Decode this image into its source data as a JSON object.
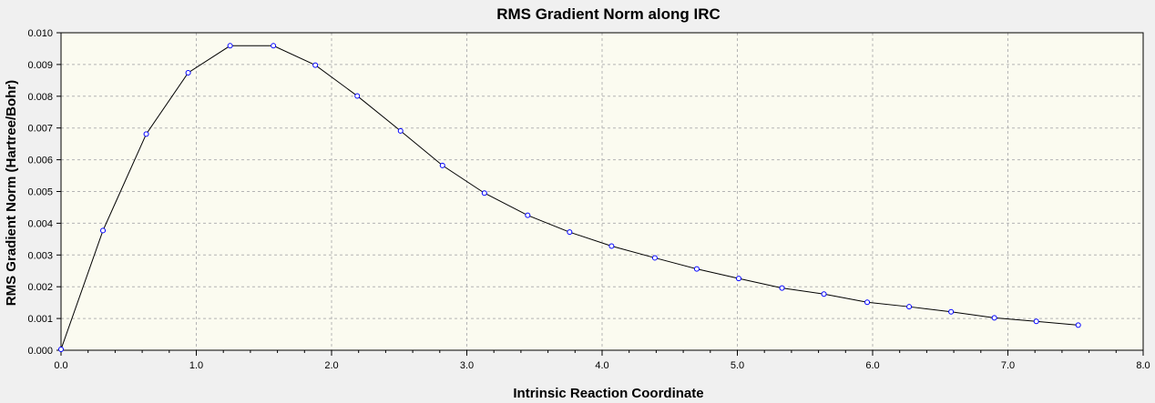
{
  "chart_data": {
    "type": "line",
    "title": "RMS Gradient Norm along IRC",
    "xlabel": "Intrinsic Reaction Coordinate",
    "ylabel": "RMS Gradient Norm (Hartree/Bohr)",
    "xlim": [
      0.0,
      8.0
    ],
    "ylim": [
      0.0,
      0.01
    ],
    "x_ticks": [
      "0.0",
      "1.0",
      "2.0",
      "3.0",
      "4.0",
      "5.0",
      "6.0",
      "7.0",
      "8.0"
    ],
    "y_ticks": [
      "0.000",
      "0.001",
      "0.002",
      "0.003",
      "0.004",
      "0.005",
      "0.006",
      "0.007",
      "0.008",
      "0.009",
      "0.010"
    ],
    "grid": true,
    "legend": false,
    "series": [
      {
        "x": [
          0.0,
          0.31,
          0.63,
          0.94,
          1.25,
          1.57,
          1.88,
          2.19,
          2.51,
          2.82,
          3.13,
          3.45,
          3.76,
          4.07,
          4.39,
          4.7,
          5.01,
          5.33,
          5.64,
          5.96,
          6.27,
          6.58,
          6.9,
          7.21,
          7.52
        ],
        "y": [
          3e-05,
          0.00377,
          0.00681,
          0.00874,
          0.00959,
          0.00959,
          0.00898,
          0.00801,
          0.00691,
          0.00582,
          0.00495,
          0.00425,
          0.00372,
          0.00328,
          0.00291,
          0.00256,
          0.00226,
          0.00196,
          0.00177,
          0.00151,
          0.00137,
          0.00121,
          0.00102,
          0.00091,
          0.00079
        ]
      }
    ],
    "colors": {
      "background": "#f0f0f0",
      "plot_background": "#fbfbf0",
      "grid": "#b4b4b4",
      "line": "#000000",
      "marker": "#0000ff"
    }
  }
}
